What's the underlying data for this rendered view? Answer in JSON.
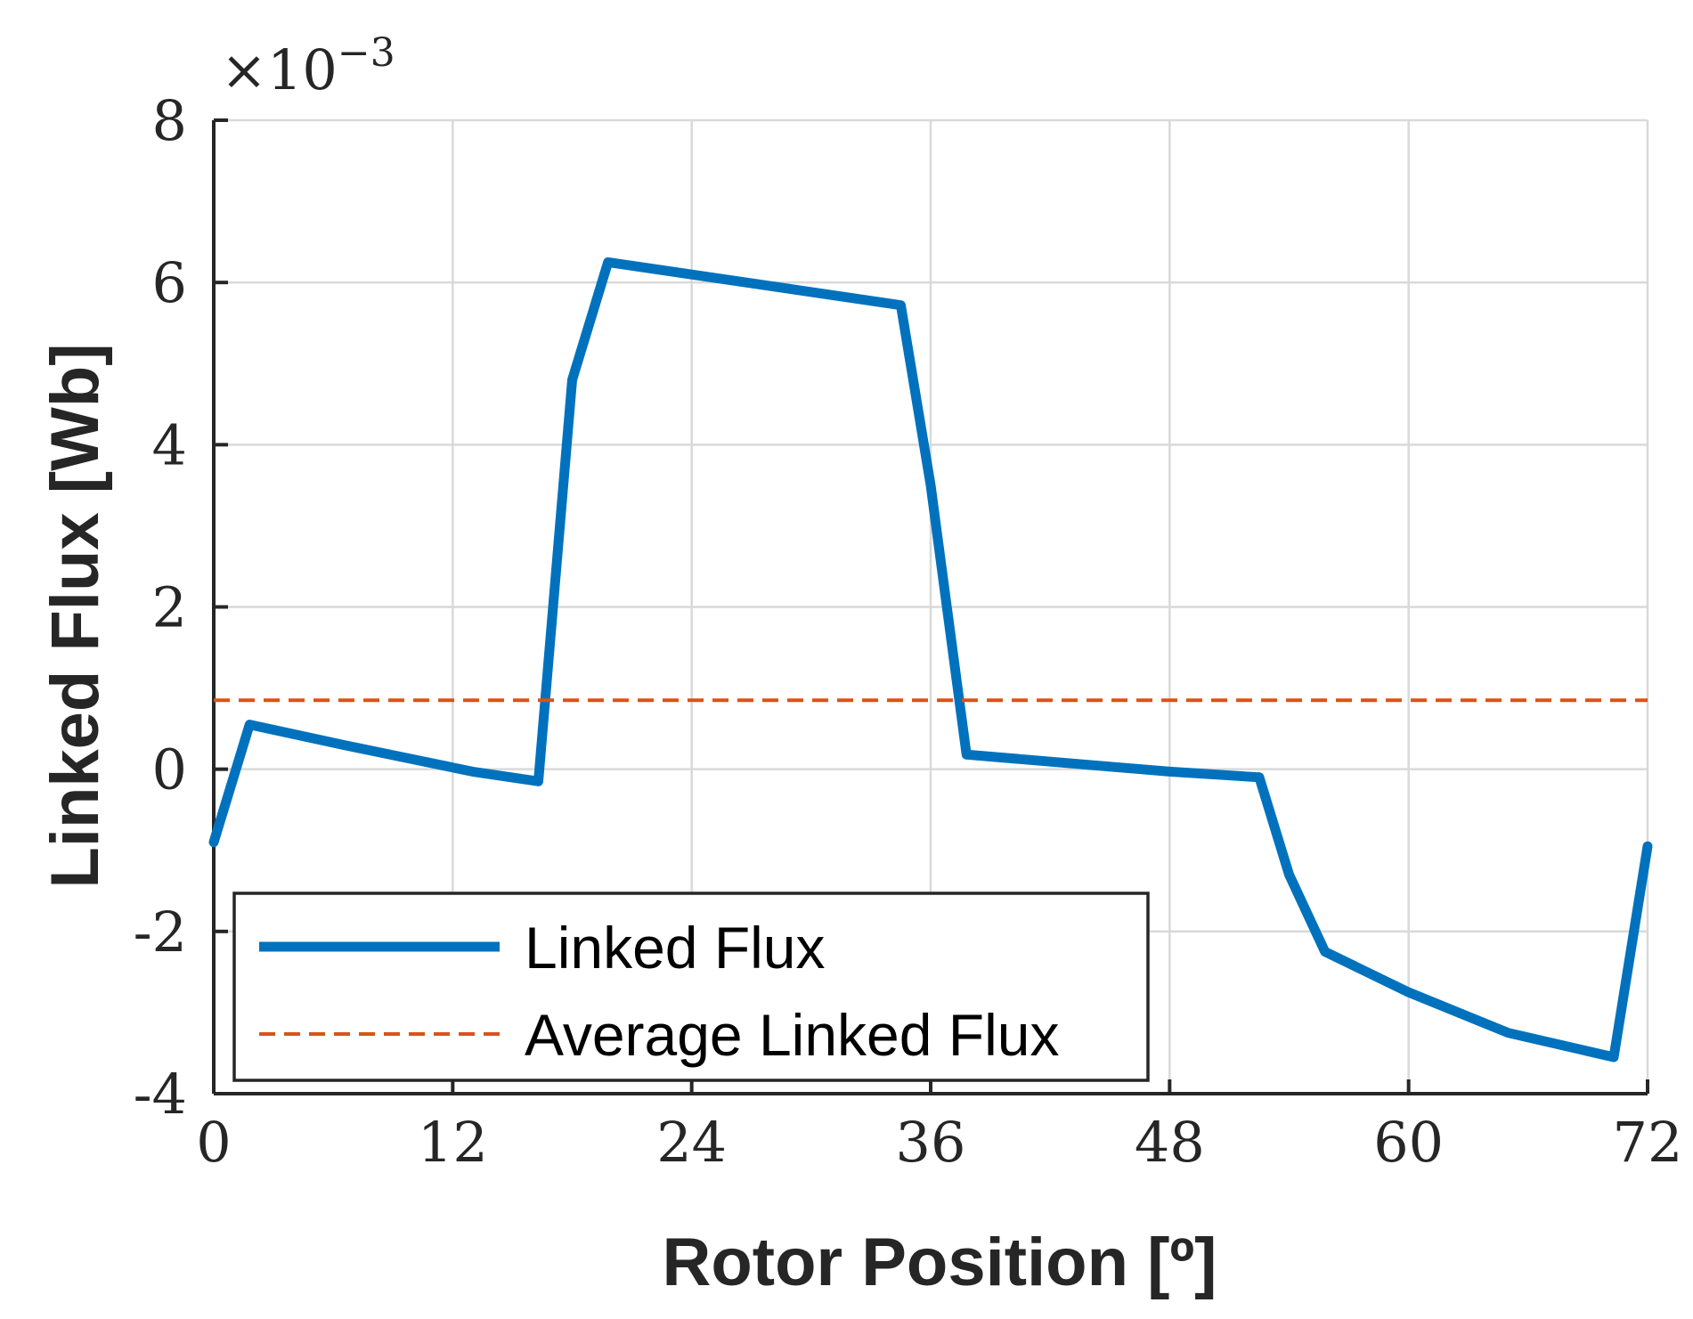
{
  "chart_data": {
    "type": "line",
    "xlabel": "Rotor Position [º]",
    "ylabel": "Linked Flux [Wb]",
    "y_scale_label": {
      "base": "×10",
      "exponent": "−3"
    },
    "xlim": [
      0,
      72
    ],
    "ylim": [
      -4,
      8
    ],
    "xticks": [
      0,
      12,
      24,
      36,
      48,
      60,
      72
    ],
    "yticks": [
      -4,
      -2,
      0,
      2,
      4,
      6,
      8
    ],
    "ytick_labels": [
      "-4",
      "-2",
      "0",
      "2",
      "4",
      "6",
      "8"
    ],
    "grid": true,
    "legend_position": "bottom-left",
    "series": [
      {
        "name": "Linked Flux",
        "color": "#0072BD",
        "style": "solid",
        "x": [
          0,
          1.8,
          6.5,
          13,
          16.3,
          18,
          19.8,
          34.5,
          36,
          37.8,
          48,
          52.5,
          54,
          55.8,
          60,
          65,
          70.3,
          72
        ],
        "y": [
          -0.9,
          0.55,
          0.3,
          -0.03,
          -0.15,
          4.8,
          6.25,
          5.72,
          3.5,
          0.18,
          -0.03,
          -0.1,
          -1.3,
          -2.25,
          -2.75,
          -3.25,
          -3.55,
          -0.95
        ]
      },
      {
        "name": "Average Linked Flux",
        "color": "#D95319",
        "style": "dashed",
        "x": [
          0,
          72
        ],
        "y": [
          0.85,
          0.85
        ]
      }
    ]
  }
}
